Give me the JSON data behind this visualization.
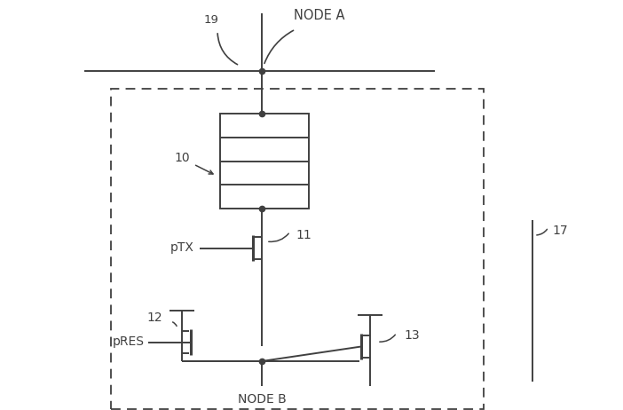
{
  "bg_color": "#ffffff",
  "line_color": "#404040",
  "line_width": 1.4,
  "fig_width": 7.02,
  "fig_height": 4.62,
  "dpi": 100,
  "labels": {
    "node_a": "NODE A",
    "node_b": "NODE B",
    "label_19": "19",
    "label_10": "10",
    "label_11": "11",
    "label_12": "12",
    "label_13": "13",
    "label_17": "17",
    "ptx": "pTX",
    "pres": "pRES"
  }
}
